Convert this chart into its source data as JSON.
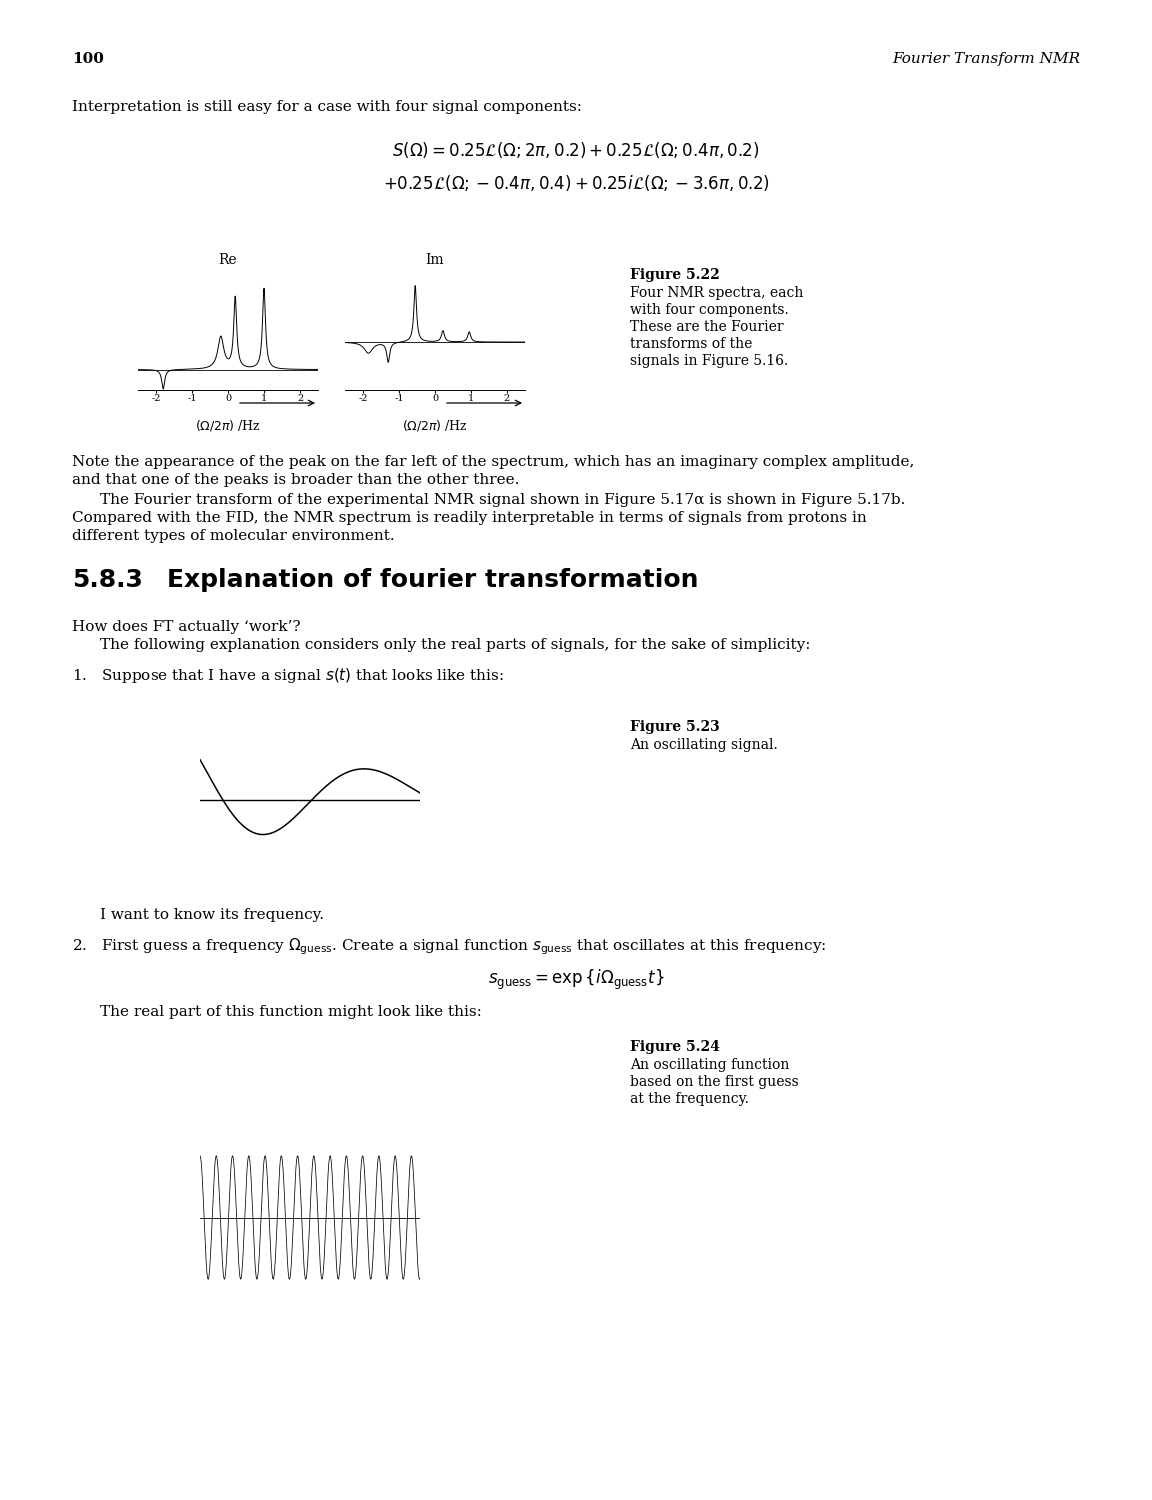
{
  "bg_color": "#ffffff",
  "page_number": "100",
  "header_right": "Fourier Transform NMR",
  "intro_text": "Interpretation is still easy for a case with four signal components:",
  "eq1": "$S(\\Omega) = 0.25\\mathcal{L}(\\Omega; 2\\pi, 0.2) + 0.25\\mathcal{L}(\\Omega; 0.4\\pi, 0.2)$",
  "eq2": "$+0.25\\mathcal{L}(\\Omega; -0.4\\pi, 0.4) + 0.25i\\mathcal{L}(\\Omega; -3.6\\pi, 0.2)$",
  "re_label": "Re",
  "im_label": "Im",
  "fig522_label": "Figure 5.22",
  "fig522_caption": "Four NMR spectra, each\nwith four components.\nThese are the Fourier\ntransforms of the\nsignals in Figure 5.16.",
  "xaxis_label": "$(\\Omega/2\\pi)$ /Hz",
  "note1": "Note the appearance of the peak on the far left of the spectrum, which has an imaginary complex amplitude,",
  "note2": "and that one of the peaks is broader than the other three.",
  "para_indent": "The Fourier transform of the experimental NMR signal shown in Figure 5.17α is shown in Figure 5.17b.",
  "para2": "Compared with the FID, the NMR spectrum is readily interpretable in terms of signals from protons in",
  "para3": "different types of molecular environment.",
  "section_num": "5.8.3",
  "section_title": "Explanation of fourier transformation",
  "howdoes": "How does FT actually ‘work’?",
  "following": "The following explanation considers only the real parts of signals, for the sake of simplicity:",
  "item1": "1.   Suppose that I have a signal $s(t)$ that looks like this:",
  "fig523_label": "Figure 5.23",
  "fig523_caption": "An oscillating signal.",
  "iwant": "I want to know its frequency.",
  "item2a": "2.   First guess a frequency $\\Omega_\\mathrm{guess}$. Create a signal function $s_\\mathrm{guess}$ that oscillates at this frequency:",
  "eq_sguess": "$s_\\mathrm{guess} = \\exp\\{i\\Omega_\\mathrm{guess}t\\}$",
  "realpart": "The real part of this function might look like this:",
  "fig524_label": "Figure 5.24",
  "fig524_caption": "An oscillating function\nbased on the first guess\nat the frequency."
}
